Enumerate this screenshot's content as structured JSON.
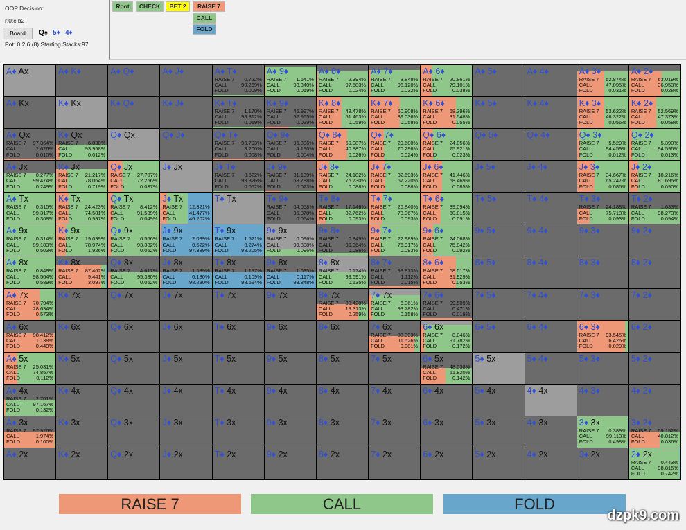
{
  "header": {
    "decision": "OOP Decision:",
    "line": "r:0:c:b2",
    "board_button": "Board",
    "board_cards": [
      "Q♠",
      "5♦",
      "4♦"
    ],
    "pot": "Pot: 0 2 6 (8) Starting Stacks:97"
  },
  "tree": {
    "root": "Root",
    "check": "CHECK",
    "bet": "BET 2",
    "raise": "RAISE 7",
    "call": "CALL",
    "fold": "FOLD"
  },
  "colors": {
    "raise": "#ef9878",
    "call": "#8fc78a",
    "fold": "#68a6cc",
    "bet": "#ffff00",
    "empty": "#6b6b6b",
    "pair": "#9d9d9d",
    "suit": "#2f4fd6"
  },
  "stat_labels": [
    "RAISE 7",
    "CALL",
    "FOLD"
  ],
  "grid": {
    "rows": [
      [
        [
          "A♦",
          "Ax"
        ],
        [
          "A♦",
          "K♦"
        ],
        [
          "A♦",
          "Q♦"
        ],
        [
          "A♦",
          "J♦"
        ],
        [
          "A♦",
          "T♦",
          "0.722%",
          "99.269%",
          "0.009%",
          0.05
        ],
        [
          "A♦",
          "9♦",
          "1.641%",
          "98.340%",
          "0.019%",
          0.95
        ],
        [
          "A♦",
          "8♦",
          "2.394%",
          "97.583%",
          "0.024%",
          0.8
        ],
        [
          "A♦",
          "7♦",
          "3.848%",
          "96.120%",
          "0.032%",
          0.85
        ],
        [
          "A♦",
          "6♦",
          "20.861%",
          "79.101%",
          "0.038%",
          1
        ],
        [
          "A♦",
          "5♦"
        ],
        [
          "A♦",
          "4♦"
        ],
        [
          "A♦",
          "3♦",
          "52.874%",
          "47.095%",
          "0.031%",
          0.8
        ],
        [
          "A♦",
          "2♦",
          "63.019%",
          "36.953%",
          "0.028%",
          0.8
        ]
      ],
      [
        [
          "A♦",
          "Kx"
        ],
        [
          "K♦",
          "Kx"
        ],
        [
          "K♦",
          "Q♦"
        ],
        [
          "K♦",
          "J♦"
        ],
        [
          "K♦",
          "T♦",
          "1.170%",
          "98.812%",
          "0.019%",
          0.05
        ],
        [
          "K♦",
          "9♦",
          "46.997%",
          "52.965%",
          "0.039%",
          0.05
        ],
        [
          "K♦",
          "8♦",
          "48.478%",
          "51.463%",
          "0.059%",
          1
        ],
        [
          "K♦",
          "7♦",
          "60.908%",
          "39.036%",
          "0.058%",
          1
        ],
        [
          "K♦",
          "6♦",
          "68.396%",
          "31.548%",
          "0.055%",
          1
        ],
        [
          "K♦",
          "5♦"
        ],
        [
          "K♦",
          "4♦"
        ],
        [
          "K♦",
          "3♦",
          "53.622%",
          "46.322%",
          "0.056%",
          1
        ],
        [
          "K♦",
          "2♦",
          "52.569%",
          "47.373%",
          "0.058%",
          1
        ]
      ],
      [
        [
          "A♦",
          "Qx",
          "97.364%",
          "2.626%",
          "0.010%",
          0.05
        ],
        [
          "K♦",
          "Qx",
          "6.030%",
          "93.958%",
          "0.012%",
          0.5
        ],
        [
          "Q♦",
          "Qx"
        ],
        [
          "Q♦",
          "J♦"
        ],
        [
          "Q♦",
          "T♦",
          "96.793%",
          "3.200%",
          "0.008%",
          0.05
        ],
        [
          "Q♦",
          "9♦",
          "95.806%",
          "4.190%",
          "0.004%",
          0.05
        ],
        [
          "Q♦",
          "8♦",
          "59.087%",
          "40.887%",
          "0.026%",
          1
        ],
        [
          "Q♦",
          "7♦",
          "29.680%",
          "70.296%",
          "0.024%",
          1
        ],
        [
          "Q♦",
          "6♦",
          "24.056%",
          "75.921%",
          "0.023%",
          1
        ],
        [
          "Q♦",
          "5♦"
        ],
        [
          "Q♦",
          "4♦"
        ],
        [
          "Q♦",
          "3♦",
          "5.529%",
          "94.459%",
          "0.012%",
          1
        ],
        [
          "Q♦",
          "2♦",
          "5.390%",
          "94.596%",
          "0.013%",
          1
        ]
      ],
      [
        [
          "A♦",
          "Jx",
          "0.277%",
          "99.474%",
          "0.249%",
          0.6
        ],
        [
          "K♦",
          "Jx",
          "21.217%",
          "78.064%",
          "0.719%",
          0.75
        ],
        [
          "Q♦",
          "Jx",
          "27.707%",
          "72.256%",
          "0.037%",
          1
        ],
        [
          "J♦",
          "Jx"
        ],
        [
          "J♦",
          "T♦",
          "0.622%",
          "99.326%",
          "0.052%",
          0.05
        ],
        [
          "J♦",
          "9♦",
          "31.139%",
          "68.788%",
          "0.073%",
          0.05
        ],
        [
          "J♦",
          "8♦",
          "24.182%",
          "75.730%",
          "0.088%",
          1
        ],
        [
          "J♦",
          "7♦",
          "32.693%",
          "67.220%",
          "0.088%",
          1
        ],
        [
          "J♦",
          "6♦",
          "41.446%",
          "58.469%",
          "0.085%",
          1
        ],
        [
          "J♦",
          "5♦"
        ],
        [
          "J♦",
          "4♦"
        ],
        [
          "J♦",
          "3♦",
          "34.667%",
          "65.247%",
          "0.086%",
          1
        ],
        [
          "J♦",
          "2♦",
          "18.216%",
          "81.695%",
          "0.090%",
          1
        ]
      ],
      [
        [
          "A♦",
          "Tx",
          "0.315%",
          "99.317%",
          "0.368%",
          1
        ],
        [
          "K♦",
          "Tx",
          "24.423%",
          "74.581%",
          "0.997%",
          1
        ],
        [
          "Q♦",
          "Tx",
          "8.412%",
          "91.539%",
          "0.049%",
          1
        ],
        [
          "J♦",
          "Tx",
          "12.321%",
          "41.477%",
          "46.202%",
          1
        ],
        [
          "T♦",
          "Tx"
        ],
        [
          "T♦",
          "9♦",
          "64.058%",
          "35.878%",
          "0.064%",
          0
        ],
        [
          "T♦",
          "8♦",
          "17.146%",
          "82.762%",
          "0.093%",
          0.5
        ],
        [
          "T♦",
          "7♦",
          "26.840%",
          "73.067%",
          "0.093%",
          1
        ],
        [
          "T♦",
          "6♦",
          "39.094%",
          "60.815%",
          "0.091%",
          1
        ],
        [
          "T♦",
          "5♦"
        ],
        [
          "T♦",
          "4♦"
        ],
        [
          "T♦",
          "3♦",
          "24.188%",
          "75.718%",
          "0.093%",
          0.5
        ],
        [
          "T♦",
          "2♦",
          "1.633%",
          "98.273%",
          "0.094%",
          0.5
        ]
      ],
      [
        [
          "A♦",
          "9x",
          "0.314%",
          "99.183%",
          "0.503%",
          1
        ],
        [
          "K♦",
          "9x",
          "19.099%",
          "78.974%",
          "1.926%",
          1
        ],
        [
          "Q♦",
          "9x",
          "6.566%",
          "93.382%",
          "0.052%",
          1
        ],
        [
          "J♦",
          "9x",
          "2.089%",
          "0.522%",
          "97.389%",
          1
        ],
        [
          "T♦",
          "9x",
          "1.521%",
          "0.274%",
          "98.205%",
          1
        ],
        [
          "9♦",
          "9x",
          "0.096%",
          "99.808%",
          "0.096%",
          0.2
        ],
        [
          "9♦",
          "8♦",
          "0.849%",
          "99.064%",
          "0.086%",
          0.1
        ],
        [
          "9♦",
          "7♦",
          "22.989%",
          "76.917%",
          "0.093%",
          1
        ],
        [
          "9♦",
          "6♦",
          "24.068%",
          "75.842%",
          "0.092%",
          1
        ],
        [
          "9♦",
          "5♦"
        ],
        [
          "9♦",
          "4♦"
        ],
        [
          "9♦",
          "3♦"
        ],
        [
          "9♦",
          "2♦"
        ]
      ],
      [
        [
          "A♦",
          "8x",
          "0.848%",
          "98.564%",
          "0.589%",
          1
        ],
        [
          "K♦",
          "8x",
          "87.462%",
          "9.441%",
          "3.097%",
          0.75
        ],
        [
          "Q♦",
          "8x",
          "4.617%",
          "95.330%",
          "0.052%",
          0.5
        ],
        [
          "J♦",
          "8x",
          "1.539%",
          "0.180%",
          "98.280%",
          0.5
        ],
        [
          "T♦",
          "8x",
          "1.197%",
          "0.109%",
          "98.694%",
          0.5
        ],
        [
          "9♦",
          "8x",
          "1.035%",
          "0.117%",
          "98.848%",
          0.5
        ],
        [
          "8♦",
          "8x",
          "0.174%",
          "99.691%",
          "0.135%",
          0.5
        ],
        [
          "8♦",
          "7♦",
          "98.873%",
          "1.112%",
          "0.015%",
          0.05
        ],
        [
          "8♦",
          "6♦",
          "68.017%",
          "31.929%",
          "0.053%",
          1
        ],
        [
          "8♦",
          "5♦"
        ],
        [
          "8♦",
          "4♦"
        ],
        [
          "8♦",
          "3♦"
        ],
        [
          "8♦",
          "2♦"
        ]
      ],
      [
        [
          "A♦",
          "7x",
          "70.794%",
          "28.634%",
          "0.573%",
          1
        ],
        [
          "K♦",
          "7x"
        ],
        [
          "Q♦",
          "7x"
        ],
        [
          "J♦",
          "7x"
        ],
        [
          "T♦",
          "7x"
        ],
        [
          "9♦",
          "7x"
        ],
        [
          "8♦",
          "7x",
          "80.428%",
          "19.313%",
          "0.259%",
          0.5
        ],
        [
          "7♦",
          "7x",
          "6.061%",
          "93.782%",
          "0.158%",
          0.8
        ],
        [
          "7♦",
          "6♦",
          "99.509%",
          "0.471%",
          "0.019%",
          0.05
        ],
        [
          "7♦",
          "5♦"
        ],
        [
          "7♦",
          "4♦"
        ],
        [
          "7♦",
          "3♦"
        ],
        [
          "7♦",
          "2♦"
        ]
      ],
      [
        [
          "A♦",
          "6x",
          "98.412%",
          "1.138%",
          "0.449%",
          0.6
        ],
        [
          "K♦",
          "6x"
        ],
        [
          "Q♦",
          "6x"
        ],
        [
          "J♦",
          "6x"
        ],
        [
          "T♦",
          "6x"
        ],
        [
          "9♦",
          "6x"
        ],
        [
          "8♦",
          "6x"
        ],
        [
          "7♦",
          "6x",
          "88.393%",
          "11.526%",
          "0.081%",
          0.5
        ],
        [
          "6♦",
          "6x",
          "8.046%",
          "91.782%",
          "0.172%",
          0.85
        ],
        [
          "6♦",
          "5♦"
        ],
        [
          "6♦",
          "4♦"
        ],
        [
          "6♦",
          "3♦",
          "93.545%",
          "6.426%",
          "0.029%",
          1
        ],
        [
          "6♦",
          "2♦"
        ]
      ],
      [
        [
          "A♦",
          "5x",
          "25.031%",
          "74.857%",
          "0.112%",
          1
        ],
        [
          "K♦",
          "5x"
        ],
        [
          "Q♦",
          "5x"
        ],
        [
          "J♦",
          "5x"
        ],
        [
          "T♦",
          "5x"
        ],
        [
          "9♦",
          "5x"
        ],
        [
          "8♦",
          "5x"
        ],
        [
          "7♦",
          "5x"
        ],
        [
          "6♦",
          "5x",
          "48.038%",
          "51.820%",
          "0.142%",
          0.5
        ],
        [
          "5♦",
          "5x"
        ],
        [
          "5♦",
          "4♦"
        ],
        [
          "5♦",
          "3♦"
        ],
        [
          "5♦",
          "2♦"
        ]
      ],
      [
        [
          "A♦",
          "4x",
          "2.701%",
          "97.167%",
          "0.132%",
          0.5
        ],
        [
          "K♦",
          "4x"
        ],
        [
          "Q♦",
          "4x"
        ],
        [
          "J♦",
          "4x"
        ],
        [
          "T♦",
          "4x"
        ],
        [
          "9♦",
          "4x"
        ],
        [
          "8♦",
          "4x"
        ],
        [
          "7♦",
          "4x"
        ],
        [
          "6♦",
          "4x"
        ],
        [
          "5♦",
          "4x"
        ],
        [
          "4♦",
          "4x"
        ],
        [
          "4♦",
          "3♦"
        ],
        [
          "4♦",
          "2♦"
        ]
      ],
      [
        [
          "A♦",
          "3x",
          "97.926%",
          "1.974%",
          "0.100%",
          0.5
        ],
        [
          "K♦",
          "3x"
        ],
        [
          "Q♦",
          "3x"
        ],
        [
          "J♦",
          "3x"
        ],
        [
          "T♦",
          "3x"
        ],
        [
          "9♦",
          "3x"
        ],
        [
          "8♦",
          "3x"
        ],
        [
          "7♦",
          "3x"
        ],
        [
          "6♦",
          "3x"
        ],
        [
          "5♦",
          "3x"
        ],
        [
          "4♦",
          "3x"
        ],
        [
          "3♦",
          "3x",
          "0.389%",
          "99.113%",
          "0.498%",
          1
        ],
        [
          "3♦",
          "2♦",
          "59.152%",
          "40.812%",
          "0.036%",
          0.5
        ]
      ],
      [
        [
          "A♦",
          "2x"
        ],
        [
          "K♦",
          "2x"
        ],
        [
          "Q♦",
          "2x"
        ],
        [
          "J♦",
          "2x"
        ],
        [
          "T♦",
          "2x"
        ],
        [
          "9♦",
          "2x"
        ],
        [
          "8♦",
          "2x"
        ],
        [
          "7♦",
          "2x"
        ],
        [
          "6♦",
          "2x"
        ],
        [
          "5♦",
          "2x"
        ],
        [
          "4♦",
          "2x"
        ],
        [
          "3♦",
          "2x"
        ],
        [
          "2♦",
          "2x",
          "0.443%",
          "98.815%",
          "0.742%",
          1
        ]
      ]
    ]
  },
  "legend": {
    "raise": "RAISE 7",
    "call": "CALL",
    "fold": "FOLD"
  },
  "watermark": "dzpk9.com"
}
